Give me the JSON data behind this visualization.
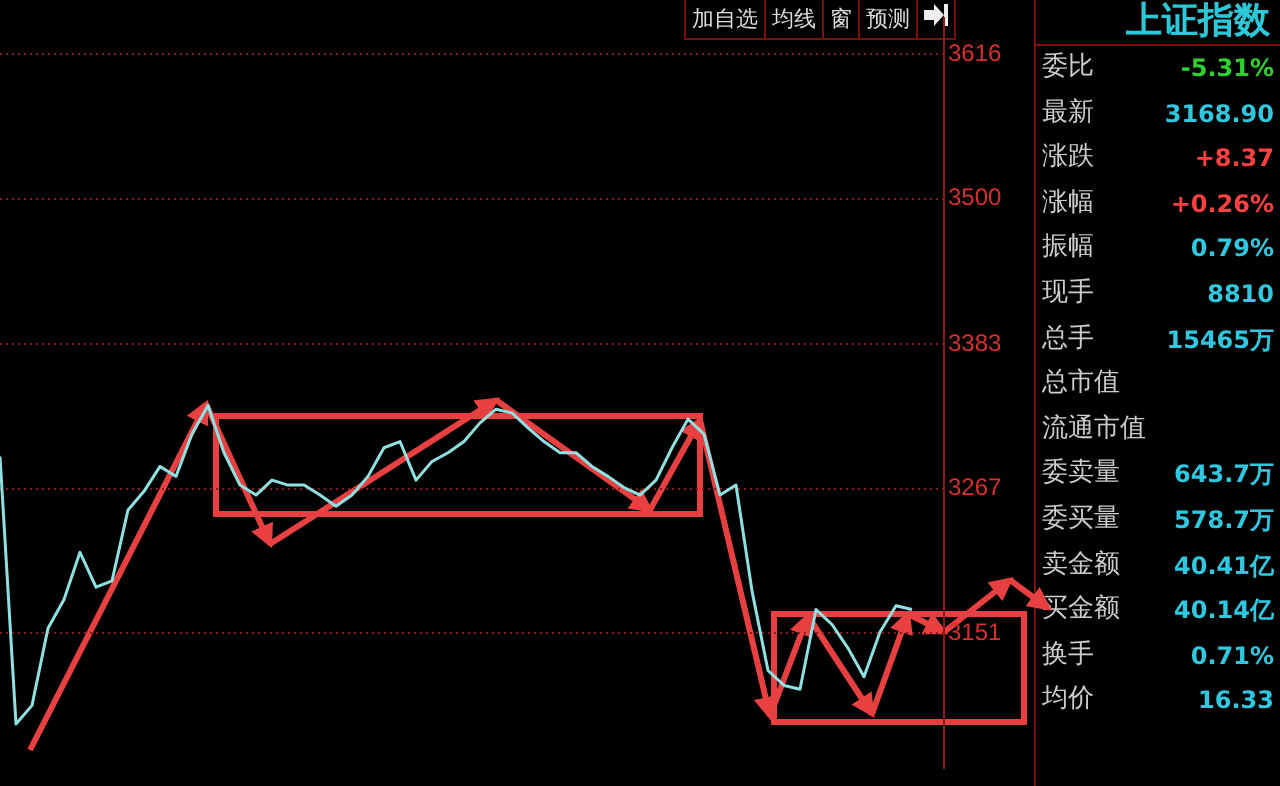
{
  "chart_data": {
    "type": "line",
    "title": "上证指数",
    "categories": [
      null,
      null,
      null,
      null,
      null,
      null,
      null,
      null,
      null,
      null,
      null,
      null,
      null,
      null,
      null,
      null,
      null,
      null,
      null,
      null,
      null,
      null,
      null,
      null,
      null,
      null,
      null,
      null,
      null,
      null,
      null,
      null,
      null,
      null,
      null,
      null,
      null,
      null,
      null,
      null,
      null,
      null,
      null,
      null,
      null,
      null,
      null,
      null,
      null,
      null,
      null,
      null,
      null,
      null,
      null,
      null,
      null,
      null,
      null,
      null
    ],
    "series": [
      {
        "color": "#8fe0e0",
        "values": [
          3293,
          3078,
          3093,
          3155,
          3178,
          3216,
          3188,
          3193,
          3250,
          3265,
          3285,
          3277,
          3311,
          3334,
          3296,
          3270,
          3262,
          3274,
          3270,
          3270,
          3262,
          3253,
          3262,
          3277,
          3300,
          3305,
          3274,
          3289,
          3296,
          3305,
          3320,
          3331,
          3328,
          3316,
          3305,
          3296,
          3296,
          3285,
          3277,
          3268,
          3262,
          3274,
          3300,
          3323,
          3311,
          3262,
          3270,
          3185,
          3121,
          3109,
          3106,
          3170,
          3158,
          3139,
          3116,
          3152,
          3173,
          3170,
          null,
          null
        ]
      }
    ],
    "ylim": [
      3043,
      3645
    ],
    "yticks": [
      3151,
      3267,
      3383,
      3500,
      3616
    ],
    "grid": "y",
    "legend": false,
    "marker": "none",
    "tick_labels": "y",
    "annotations": [
      "加自选",
      "均线",
      "窗",
      "预测",
      "委比 -5.31%",
      "最新 3168.90",
      "涨跌 +8.37",
      "涨幅 +0.26%",
      "振幅 0.79%",
      "现手 8810",
      "总手 15465万",
      "总市值",
      "流通市值",
      "委卖量 643.7万",
      "委买量 578.7万",
      "卖金额 40.41亿",
      "买金额 40.14亿",
      "换手 0.71%",
      "均价 16.33"
    ]
  }
}
